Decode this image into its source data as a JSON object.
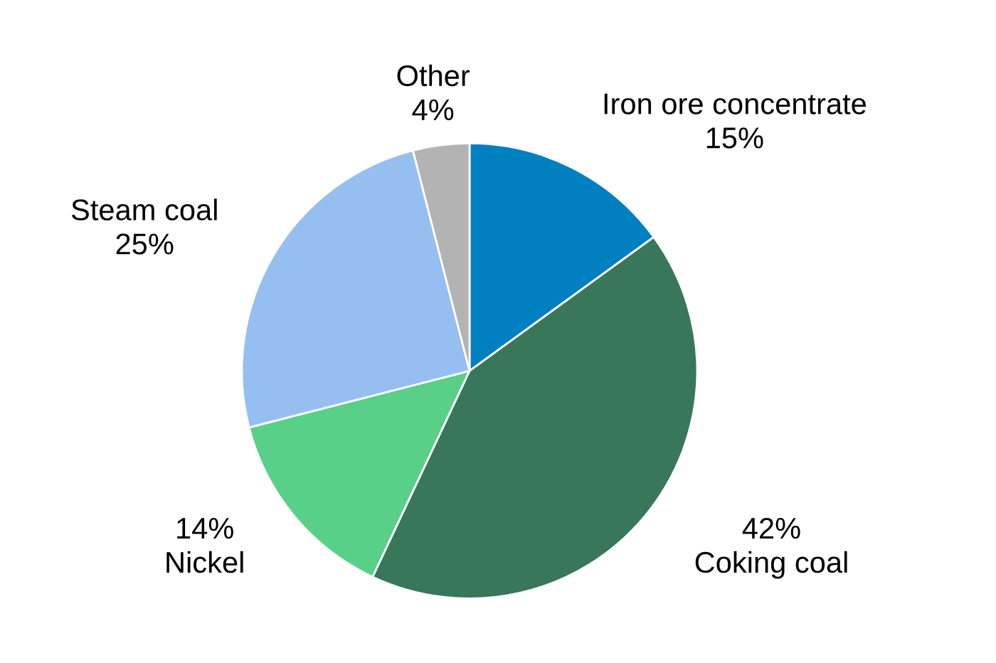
{
  "chart_data": {
    "type": "pie",
    "categories": [
      "Iron ore concentrate",
      "Coking coal",
      "Nickel",
      "Steam coal",
      "Other"
    ],
    "values": [
      15,
      42,
      14,
      25,
      4
    ],
    "value_labels": [
      "15%",
      "42%",
      "14%",
      "25%",
      "4%"
    ],
    "colors": [
      "#0080c0",
      "#38775a",
      "#58d088",
      "#95bff0",
      "#b3b3b3"
    ],
    "legend": false
  }
}
